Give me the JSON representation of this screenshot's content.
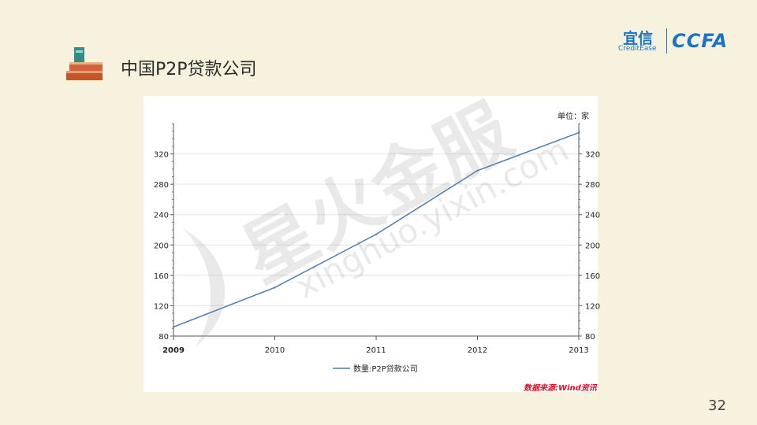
{
  "slide": {
    "title": "中国P2P贷款公司",
    "page_number": "32",
    "source_note": "数据来源:Wind资讯",
    "unit_label": "单位：家"
  },
  "logo": {
    "cn": "宜信",
    "en": "CreditEase",
    "mark": "CCFA"
  },
  "watermark": {
    "text_cn": "星火金服",
    "text_url": "xinghuo.yixin.com"
  },
  "colors": {
    "background": "#f7f2de",
    "series_line": "#4a7cb0",
    "brand_blue": "#1b73c4",
    "source_red": "#e0102a"
  },
  "chart_data": {
    "type": "line",
    "title": "",
    "xlabel": "",
    "ylabel": "",
    "x": [
      2009,
      2010,
      2011,
      2012,
      2013
    ],
    "series": [
      {
        "name": "数量:P2P贷款公司",
        "values": [
          92,
          144,
          214,
          298,
          348
        ]
      }
    ],
    "x_ticks": [
      "2009",
      "2010",
      "2011",
      "2012",
      "2013"
    ],
    "y_ticks": [
      80,
      120,
      160,
      200,
      240,
      280,
      320
    ],
    "ylim": [
      80,
      360
    ],
    "xlim": [
      2009,
      2013
    ],
    "grid": "horizontal",
    "y_axes": "left-and-right",
    "legend_position": "bottom"
  }
}
